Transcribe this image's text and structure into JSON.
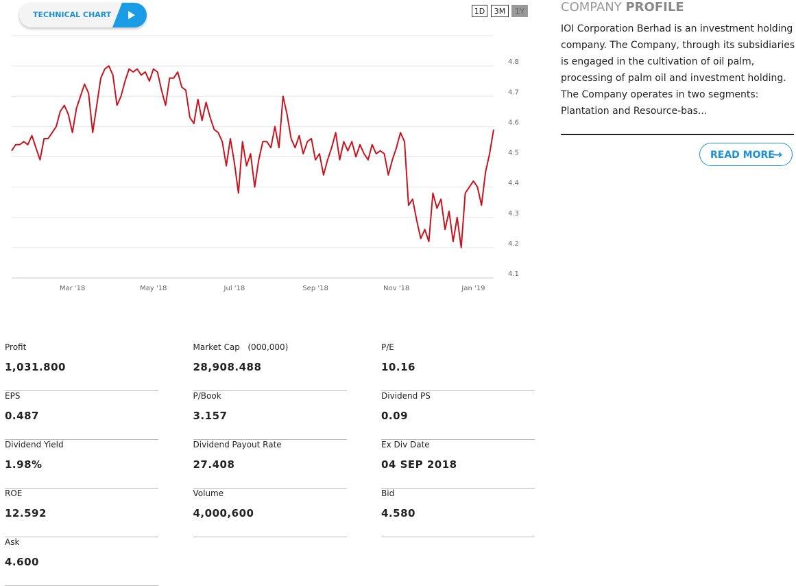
{
  "header": {
    "technical_chart": "TECHNICAL CHART",
    "ranges": [
      "1D",
      "3M",
      "1Y"
    ]
  },
  "chart_data": {
    "type": "line",
    "color": "#c8141c",
    "categories": [
      null,
      null,
      null,
      null,
      null,
      null,
      null,
      null,
      null,
      null,
      null,
      null,
      null,
      null,
      null,
      "Mar '18",
      null,
      null,
      null,
      null,
      null,
      null,
      null,
      null,
      null,
      null,
      null,
      null,
      null,
      null,
      null,
      null,
      null,
      null,
      null,
      "May '18",
      null,
      null,
      null,
      null,
      null,
      null,
      null,
      null,
      null,
      null,
      null,
      null,
      null,
      null,
      null,
      null,
      null,
      null,
      null,
      "Jul '18",
      null,
      null,
      null,
      null,
      null,
      null,
      null,
      null,
      null,
      null,
      null,
      null,
      null,
      null,
      null,
      null,
      null,
      null,
      null,
      "Sep '18",
      null,
      null,
      null,
      null,
      null,
      null,
      null,
      null,
      null,
      null,
      null,
      null,
      null,
      null,
      null,
      null,
      null,
      null,
      null,
      "Nov '18",
      null,
      null,
      null,
      null,
      null,
      null,
      null,
      null,
      null,
      null,
      null,
      null,
      null,
      null,
      null,
      null,
      null,
      null,
      "Jan '19",
      null,
      null,
      null,
      null,
      null
    ],
    "values": [
      4.52,
      4.54,
      4.54,
      4.55,
      4.54,
      4.57,
      4.53,
      4.49,
      4.56,
      4.56,
      4.58,
      4.6,
      4.65,
      4.67,
      4.64,
      4.58,
      4.66,
      4.7,
      4.74,
      4.71,
      4.58,
      4.67,
      4.76,
      4.79,
      4.8,
      4.77,
      4.67,
      4.7,
      4.75,
      4.79,
      4.78,
      4.79,
      4.77,
      4.78,
      4.75,
      4.79,
      4.78,
      4.72,
      4.67,
      4.76,
      4.76,
      4.78,
      4.73,
      4.72,
      4.63,
      4.61,
      4.69,
      4.62,
      4.68,
      4.63,
      4.59,
      4.58,
      4.55,
      4.47,
      4.56,
      4.48,
      4.38,
      4.55,
      4.47,
      4.51,
      4.4,
      4.49,
      4.55,
      4.55,
      4.53,
      4.6,
      4.53,
      4.7,
      4.64,
      4.56,
      4.53,
      4.57,
      4.51,
      4.55,
      4.56,
      4.49,
      4.51,
      4.44,
      4.49,
      4.53,
      4.58,
      4.49,
      4.55,
      4.52,
      4.55,
      4.5,
      4.54,
      4.51,
      4.49,
      4.54,
      4.51,
      4.52,
      4.51,
      4.44,
      4.49,
      4.53,
      4.58,
      4.55,
      4.34,
      4.36,
      4.29,
      4.23,
      4.26,
      4.22,
      4.38,
      4.33,
      4.36,
      4.26,
      4.32,
      4.22,
      4.3,
      4.2,
      4.38,
      4.4,
      4.42,
      4.4,
      4.34,
      4.45,
      4.51,
      4.59
    ],
    "ylim": [
      4.1,
      4.9
    ],
    "yticks": [
      4.1,
      4.2,
      4.3,
      4.4,
      4.5,
      4.6,
      4.7,
      4.8
    ],
    "grid": true
  },
  "profile": {
    "title_light": "COMPANY",
    "title_bold": "PROFILE",
    "text": "IOI Corporation Berhad is an investment holding company. The Company, through its subsidiaries is engaged in the cultivation of oil palm, processing of palm oil and investment holding. The Company operates in two segments: Plantation and Resource-bas...",
    "read_more": "READ MORE"
  },
  "stats": [
    {
      "label": "Profit",
      "value": "1,031.800"
    },
    {
      "label": "Market Cap   (000,000)",
      "value": "28,908.488"
    },
    {
      "label": "P/E",
      "value": "10.16"
    },
    {
      "label": "EPS",
      "value": "0.487"
    },
    {
      "label": "P/Book",
      "value": "3.157"
    },
    {
      "label": "Dividend PS",
      "value": "0.09"
    },
    {
      "label": "Dividend Yield",
      "value": "1.98%"
    },
    {
      "label": "Dividend Payout Rate",
      "value": "27.408"
    },
    {
      "label": "Ex Div Date",
      "value": "04 SEP 2018"
    },
    {
      "label": "ROE",
      "value": "12.592"
    },
    {
      "label": "Volume",
      "value": "4,000,600"
    },
    {
      "label": "Bid",
      "value": "4.580"
    },
    {
      "label": "Ask",
      "value": "4.600"
    }
  ]
}
